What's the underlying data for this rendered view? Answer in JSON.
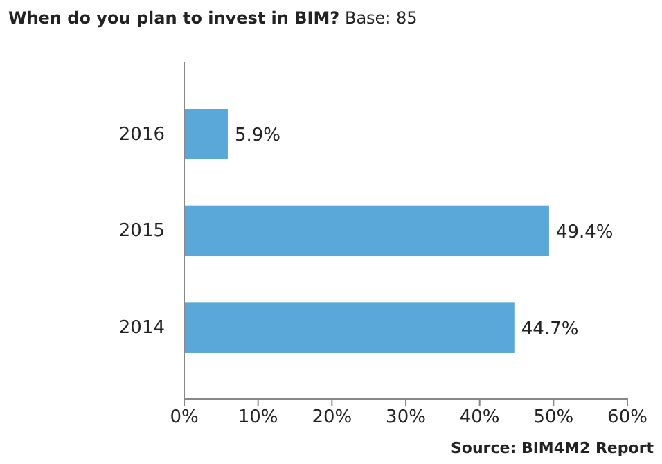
{
  "chart_data": {
    "type": "bar",
    "orientation": "horizontal",
    "title": "When do you plan to invest in BIM?",
    "subtitle": "Base: 85",
    "categories": [
      "2016",
      "2015",
      "2014"
    ],
    "values": [
      5.9,
      49.4,
      44.7
    ],
    "color": "#5aa8da",
    "data_labels": true,
    "value_labels": [
      "5.9%",
      "49.4%",
      "44.7%"
    ],
    "xlim": [
      0,
      60
    ],
    "xticks": [
      {
        "value": 0,
        "label": "0%"
      },
      {
        "value": 10,
        "label": "10%"
      },
      {
        "value": 20,
        "label": "20%"
      },
      {
        "value": 30,
        "label": "30%"
      },
      {
        "value": 40,
        "label": "40%"
      },
      {
        "value": 50,
        "label": "50%"
      },
      {
        "value": 60,
        "label": "60%"
      }
    ],
    "grid": false,
    "annotations": [
      "Source: BIM4M2 Report"
    ]
  }
}
